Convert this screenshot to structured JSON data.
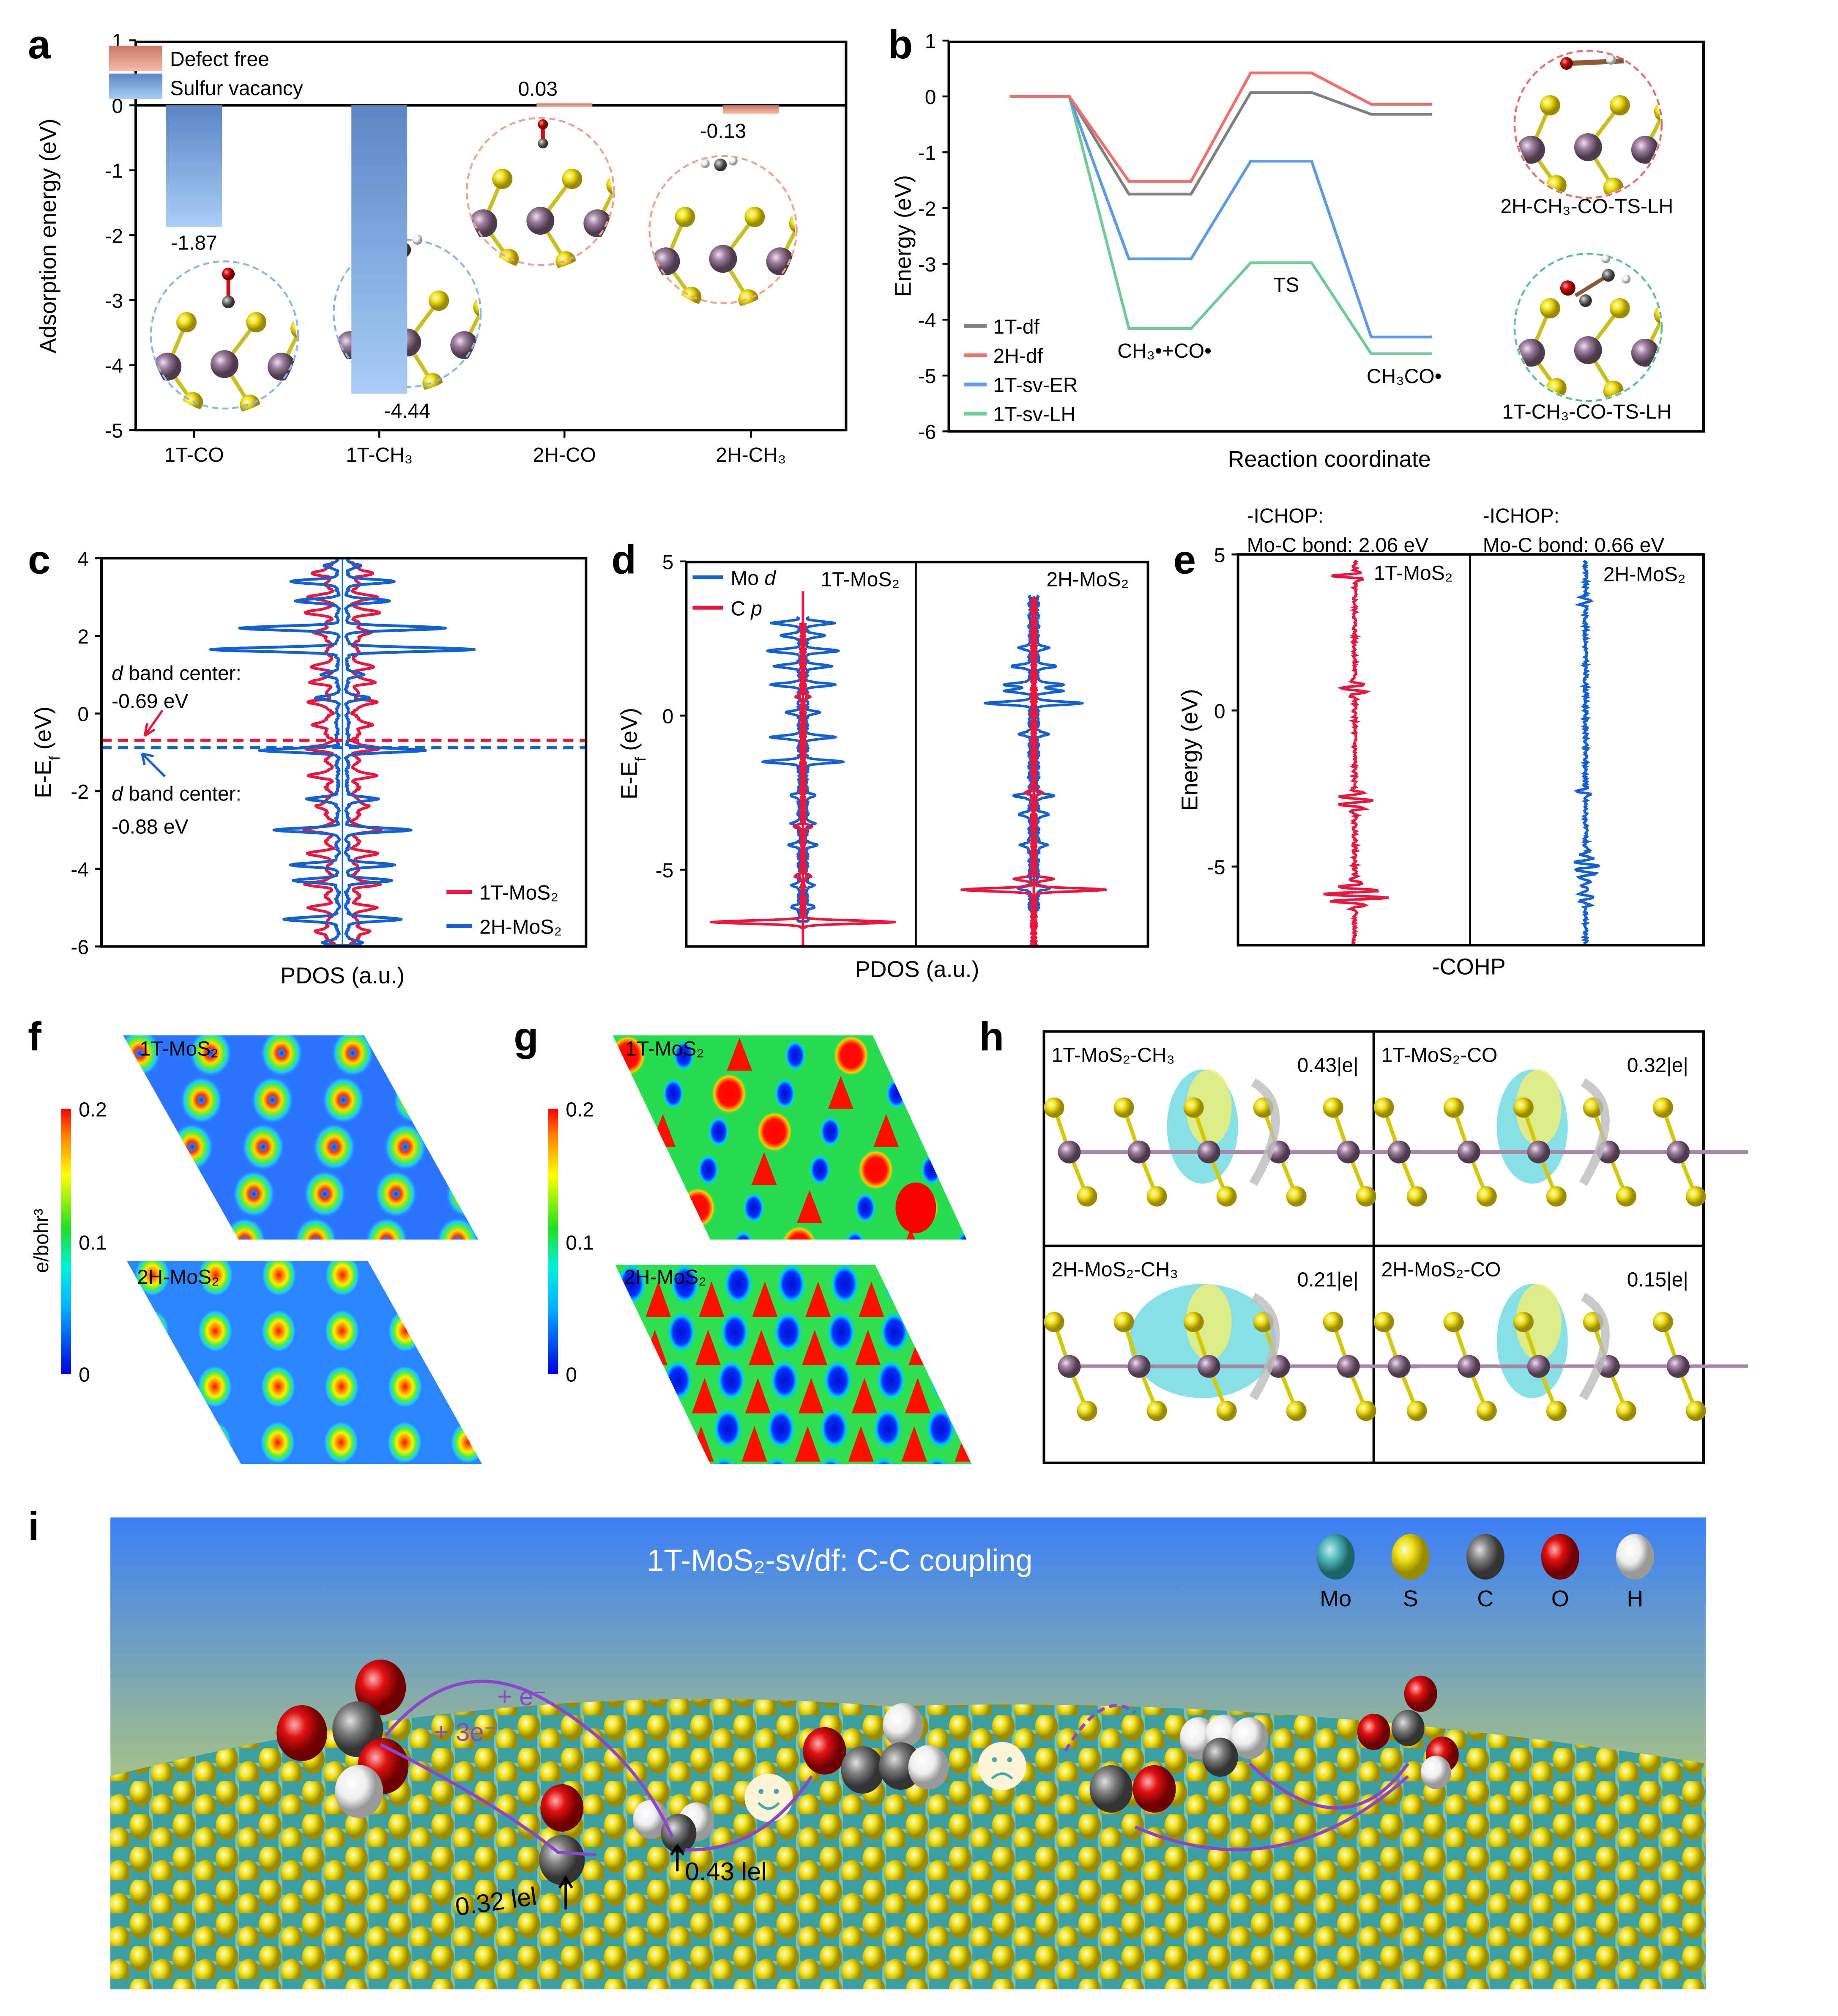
{
  "panel_labels": [
    "a",
    "b",
    "c",
    "d",
    "e",
    "f",
    "g",
    "h",
    "i"
  ],
  "colors": {
    "defect_free": "#ef9a86",
    "sulfur_vacancy": "#7ea6de",
    "red": "#e8173f",
    "blue": "#1560d0",
    "one_t_df": "#7f7f7f",
    "two_h_df": "#ef6f6c",
    "one_t_sv_er": "#5b9be6",
    "one_t_sv_lh": "#6ecb97",
    "electron_arrow": "#8b47c9"
  },
  "chart_data": [
    {
      "panel": "a",
      "type": "bar",
      "categories": [
        "1T-CO",
        "1T-CH₃",
        "2H-CO",
        "2H-CH₃"
      ],
      "series": [
        {
          "name": "Defect free",
          "values": [
            null,
            null,
            0.03,
            -0.13
          ]
        },
        {
          "name": "Sulfur vacancy",
          "values": [
            -1.87,
            -4.44,
            null,
            null
          ]
        }
      ],
      "data_labels": [
        "-1.87",
        "-4.44",
        "0.03",
        "-0.13"
      ],
      "xlabel": "",
      "ylabel": "Adsorption energy (eV)",
      "ylim": [
        -5,
        1
      ],
      "yticks": [
        "1",
        "0",
        "-1",
        "-2",
        "-3",
        "-4",
        "-5"
      ],
      "legend": "top-left"
    },
    {
      "panel": "b",
      "type": "line",
      "stages": 4,
      "series": [
        {
          "name": "1T-df",
          "values": [
            0,
            -1.75,
            0.07,
            -0.32
          ]
        },
        {
          "name": "2H-df",
          "values": [
            0,
            -1.52,
            0.42,
            -0.14
          ]
        },
        {
          "name": "1T-sv-ER",
          "values": [
            0,
            -2.91,
            -1.16,
            -4.31
          ]
        },
        {
          "name": "1T-sv-LH",
          "values": [
            0,
            -4.16,
            -2.98,
            -4.61
          ]
        }
      ],
      "annotations": [
        "CH₃•+CO•",
        "TS",
        "CH₃CO•"
      ],
      "inset_labels": [
        "2H-CH₃-CO-TS-LH",
        "1T-CH₃-CO-TS-LH"
      ],
      "xlabel": "Reaction coordinate",
      "ylabel": "Energy (eV)",
      "ylim": [
        -6,
        1
      ],
      "yticks": [
        "1",
        "0",
        "-1",
        "-2",
        "-3",
        "-4",
        "-5",
        "-6"
      ],
      "legend": "bottom-left"
    },
    {
      "panel": "c",
      "type": "line",
      "series": [
        {
          "name": "1T-MoS₂",
          "d_band_center": -0.69,
          "approx_peaks": [
            [
              3.6,
              25
            ],
            [
              3.0,
              30
            ],
            [
              2.6,
              35
            ],
            [
              2.1,
              30
            ],
            [
              1.2,
              25
            ],
            [
              0.8,
              30
            ],
            [
              0.3,
              35
            ],
            [
              -0.3,
              30
            ],
            [
              -0.9,
              35
            ],
            [
              -1.6,
              30
            ],
            [
              -2.4,
              25
            ],
            [
              -3.0,
              35
            ],
            [
              -3.6,
              30
            ],
            [
              -4.4,
              35
            ],
            [
              -5.0,
              30
            ],
            [
              -5.6,
              25
            ]
          ]
        },
        {
          "name": "2H-MoS₂",
          "d_band_center": -0.88,
          "approx_peaks": [
            [
              3.8,
              20
            ],
            [
              3.4,
              70
            ],
            [
              2.9,
              60
            ],
            [
              2.2,
              140
            ],
            [
              1.65,
              185
            ],
            [
              1.0,
              25
            ],
            [
              0.4,
              30
            ],
            [
              -0.95,
              110
            ],
            [
              -2.2,
              45
            ],
            [
              -3.0,
              90
            ],
            [
              -3.9,
              70
            ],
            [
              -4.3,
              65
            ],
            [
              -5.3,
              80
            ],
            [
              -5.9,
              20
            ]
          ]
        }
      ],
      "annotation_red": {
        "italic": "d",
        "rest": " band center:",
        "value": "-0.69 eV"
      },
      "annotation_blue": {
        "italic": "d",
        "rest": " band center:",
        "value": "-0.88 eV"
      },
      "xlabel": "PDOS (a.u.)",
      "ylabel": {
        "main": "E-E",
        "sub": "f",
        "unit": " (eV)"
      },
      "ylim": [
        -6,
        4
      ],
      "yticks": [
        "4",
        "2",
        "0",
        "-2",
        "-4",
        "-6"
      ],
      "legend": "bottom-right"
    },
    {
      "panel": "d",
      "type": "line",
      "subpanels": [
        "1T-MoS₂",
        "2H-MoS₂"
      ],
      "series": [
        {
          "name": "Mo d",
          "name_main": "Mo ",
          "name_italic": "d"
        },
        {
          "name": "C p",
          "name_main": "C ",
          "name_italic": "p"
        }
      ],
      "xlabel": "PDOS (a.u.)",
      "ylabel": {
        "main": "E-E",
        "sub": "f",
        "unit": " (eV)"
      },
      "ylim": [
        -7.5,
        5
      ],
      "yticks": [
        "5",
        "0",
        "-5"
      ],
      "legend": "top-left"
    },
    {
      "panel": "e",
      "type": "line",
      "subpanels": [
        {
          "name": "1T-MoS₂",
          "ichop_title": "-ICHOP:",
          "ichop_value": "Mo-C bond: 2.06 eV"
        },
        {
          "name": "2H-MoS₂",
          "ichop_title": "-ICHOP:",
          "ichop_value": "Mo-C bond: 0.66 eV"
        }
      ],
      "xlabel": "-COHP",
      "ylabel": "Energy (eV)",
      "ylim": [
        -7.5,
        5
      ],
      "yticks": [
        "5",
        "0",
        "-5"
      ]
    }
  ],
  "panel_f": {
    "maps": [
      "1T-MoS₂",
      "2H-MoS₂"
    ],
    "colorbar": {
      "label": "e/bohr³",
      "ticks": [
        "0.2",
        "0.1",
        "0"
      ],
      "range": [
        0,
        0.2
      ]
    }
  },
  "panel_g": {
    "maps": [
      "1T-MoS₂",
      "2H-MoS₂"
    ],
    "colorbar": {
      "ticks": [
        "0.2",
        "0.1",
        "0"
      ],
      "range": [
        0,
        0.2
      ]
    }
  },
  "panel_h": {
    "cells": [
      {
        "label": "1T-MoS₂-CH₃",
        "charge": "0.43|e|"
      },
      {
        "label": "1T-MoS₂-CO",
        "charge": "0.32|e|"
      },
      {
        "label": "2H-MoS₂-CH₃",
        "charge": "0.21|e|"
      },
      {
        "label": "2H-MoS₂-CO",
        "charge": "0.15|e|"
      }
    ]
  },
  "panel_i": {
    "title": "1T-MoS₂-sv/df: C-C coupling",
    "legend": [
      {
        "label": "Mo",
        "color": "#4fb3b6"
      },
      {
        "label": "S",
        "color": "#f2e21a"
      },
      {
        "label": "C",
        "color": "#7a7a7a"
      },
      {
        "label": "O",
        "color": "#e01010"
      },
      {
        "label": "H",
        "color": "#f4f4f4"
      }
    ],
    "electron_labels": [
      "+ e⁻",
      "+ 3e⁻"
    ],
    "charge_labels": [
      "0.32 lel",
      "0.43 lel"
    ]
  }
}
